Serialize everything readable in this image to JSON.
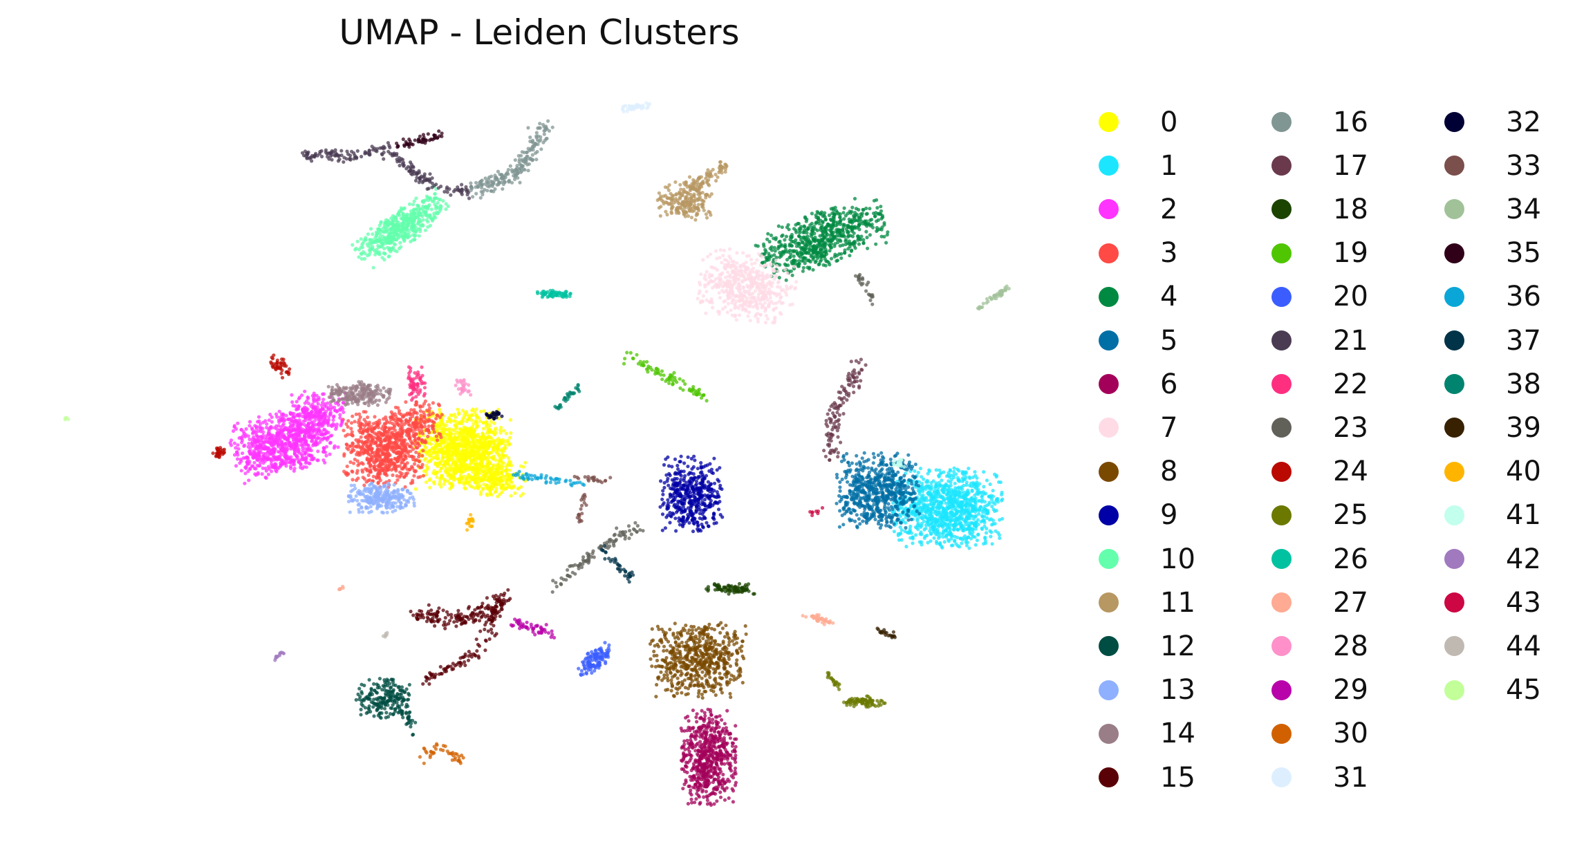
{
  "chart_data": {
    "type": "scatter",
    "title": "UMAP - Leiden Clusters",
    "xlabel": "",
    "ylabel": "",
    "axes_visible": false,
    "grid": false,
    "legend_placement": "right",
    "legend_columns": 3,
    "clusters": [
      {
        "name": "0",
        "color": "#FFFF00"
      },
      {
        "name": "1",
        "color": "#1CE6FF"
      },
      {
        "name": "2",
        "color": "#FF34FF"
      },
      {
        "name": "3",
        "color": "#FF4A46"
      },
      {
        "name": "4",
        "color": "#008941"
      },
      {
        "name": "5",
        "color": "#006FA6"
      },
      {
        "name": "6",
        "color": "#A30059"
      },
      {
        "name": "7",
        "color": "#FFDBE5"
      },
      {
        "name": "8",
        "color": "#7A4900"
      },
      {
        "name": "9",
        "color": "#0000A6"
      },
      {
        "name": "10",
        "color": "#63FFAC"
      },
      {
        "name": "11",
        "color": "#B79762"
      },
      {
        "name": "12",
        "color": "#004D43"
      },
      {
        "name": "13",
        "color": "#8FB0FF"
      },
      {
        "name": "14",
        "color": "#997D87"
      },
      {
        "name": "15",
        "color": "#5A0007"
      },
      {
        "name": "16",
        "color": "#809693"
      },
      {
        "name": "17",
        "color": "#6A3A4C"
      },
      {
        "name": "18",
        "color": "#1B4400"
      },
      {
        "name": "19",
        "color": "#4FC601"
      },
      {
        "name": "20",
        "color": "#3B5DFF"
      },
      {
        "name": "21",
        "color": "#4A3B53"
      },
      {
        "name": "22",
        "color": "#FF2F80"
      },
      {
        "name": "23",
        "color": "#61615A"
      },
      {
        "name": "24",
        "color": "#BA0900"
      },
      {
        "name": "25",
        "color": "#6B7900"
      },
      {
        "name": "26",
        "color": "#00C2A0"
      },
      {
        "name": "27",
        "color": "#FFAA92"
      },
      {
        "name": "28",
        "color": "#FF90C9"
      },
      {
        "name": "29",
        "color": "#B903AA"
      },
      {
        "name": "30",
        "color": "#D16100"
      },
      {
        "name": "31",
        "color": "#DDEFFF"
      },
      {
        "name": "32",
        "color": "#000035"
      },
      {
        "name": "33",
        "color": "#7B4F4B"
      },
      {
        "name": "34",
        "color": "#A1C299"
      },
      {
        "name": "35",
        "color": "#300018"
      },
      {
        "name": "36",
        "color": "#0AA6D8"
      },
      {
        "name": "37",
        "color": "#013349"
      },
      {
        "name": "38",
        "color": "#00846F"
      },
      {
        "name": "39",
        "color": "#372101"
      },
      {
        "name": "40",
        "color": "#FFB500"
      },
      {
        "name": "41",
        "color": "#C2FFED"
      },
      {
        "name": "42",
        "color": "#A079BF"
      },
      {
        "name": "43",
        "color": "#CC0744"
      },
      {
        "name": "44",
        "color": "#C0B9B2"
      },
      {
        "name": "45",
        "color": "#C2FF99"
      }
    ]
  }
}
